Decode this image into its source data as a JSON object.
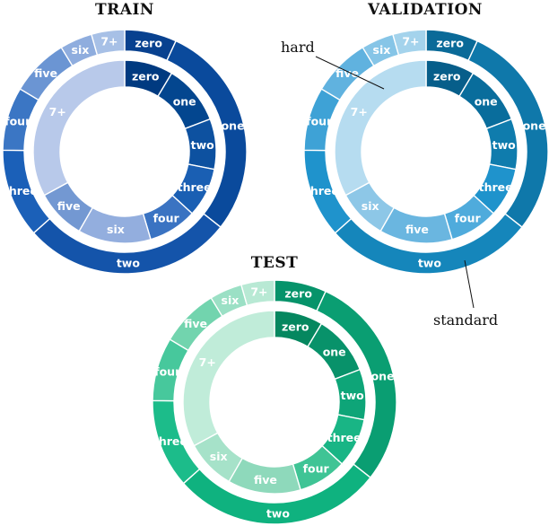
{
  "chart_data": [
    {
      "type": "pie",
      "title": "TRAIN",
      "rings": {
        "outer": {
          "categories": [
            "zero",
            "one",
            "two",
            "three",
            "four",
            "five",
            "six",
            "7+"
          ],
          "values": [
            6.9,
            28.7,
            27.8,
            11.8,
            8.4,
            7.7,
            4.3,
            4.4
          ],
          "colors": [
            "#08418f",
            "#0a4a9c",
            "#1454aa",
            "#1b60b8",
            "#3b76c4",
            "#6b95d3",
            "#8fadde",
            "#a7c0e6"
          ]
        },
        "inner": {
          "categories": [
            "zero",
            "one",
            "two",
            "three",
            "four",
            "six",
            "five",
            "7+"
          ],
          "values": [
            8.6,
            10.6,
            8.9,
            8.7,
            8.6,
            12.9,
            8.8,
            32.9
          ],
          "colors": [
            "#003a80",
            "#03468f",
            "#0d51a0",
            "#1a5fb3",
            "#3a73c2",
            "#93aede",
            "#7398d2",
            "#b8c9ea"
          ]
        }
      }
    },
    {
      "type": "pie",
      "title": "VALIDATION",
      "annotations": [
        "hard",
        "standard"
      ],
      "rings": {
        "outer": {
          "categories": [
            "zero",
            "one",
            "two",
            "three",
            "four",
            "five",
            "six",
            "7+"
          ],
          "values": [
            6.9,
            28.7,
            27.8,
            11.8,
            8.4,
            7.7,
            4.3,
            4.4
          ],
          "colors": [
            "#0a6a98",
            "#0f78aa",
            "#1586bb",
            "#1f93cc",
            "#3ea2d6",
            "#60b2df",
            "#86c5e7",
            "#a4d3ec"
          ]
        },
        "inner": {
          "categories": [
            "zero",
            "one",
            "two",
            "three",
            "four",
            "five",
            "six",
            "7+"
          ],
          "values": [
            8.6,
            10.6,
            8.9,
            8.7,
            8.6,
            12.9,
            8.8,
            32.9
          ],
          "colors": [
            "#075e8a",
            "#096d9c",
            "#0f7cad",
            "#1f93cc",
            "#4fabdc",
            "#6ab6e0",
            "#8dc7e7",
            "#b6dcf0"
          ]
        }
      }
    },
    {
      "type": "pie",
      "title": "TEST",
      "rings": {
        "outer": {
          "categories": [
            "zero",
            "one",
            "two",
            "three",
            "four",
            "five",
            "six",
            "7+"
          ],
          "values": [
            6.9,
            28.7,
            27.8,
            11.8,
            8.4,
            7.7,
            4.3,
            4.4
          ],
          "colors": [
            "#06936a",
            "#0a9e72",
            "#0fb27f",
            "#1cbc8a",
            "#47c89c",
            "#72d4ae",
            "#9be0c5",
            "#b8e9d4"
          ]
        },
        "inner": {
          "categories": [
            "zero",
            "one",
            "two",
            "three",
            "four",
            "five",
            "six",
            "7+"
          ],
          "values": [
            8.6,
            10.6,
            8.9,
            8.7,
            8.6,
            12.9,
            8.8,
            32.9
          ],
          "colors": [
            "#05875f",
            "#08926a",
            "#0ea578",
            "#19b585",
            "#3fc495",
            "#8ed9bb",
            "#a6e2c9",
            "#c0ecd9"
          ]
        }
      }
    }
  ]
}
